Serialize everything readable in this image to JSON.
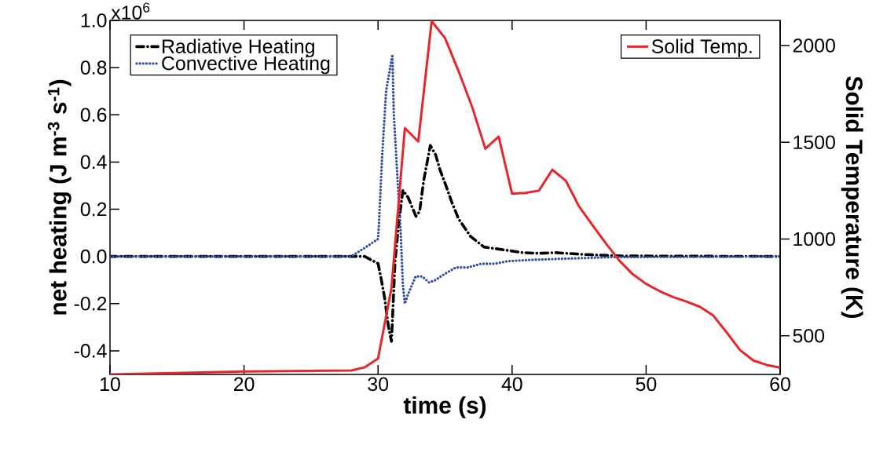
{
  "chart_data": {
    "type": "line",
    "xlabel": "time (s)",
    "ylabel": "net heating (J m$^{-3}$ s$^{-1}$)",
    "y2label": "Solid Temperature (K)",
    "xlim": [
      10,
      60
    ],
    "xticks": [
      10,
      20,
      30,
      40,
      50,
      60
    ],
    "ylim": [
      -0.5,
      1.0
    ],
    "yticks": [
      -0.4,
      -0.2,
      {
        "value": 0,
        "label": "0.0"
      },
      0.2,
      0.4,
      0.6,
      0.8,
      {
        "value": 1.0,
        "label": "1.0"
      }
    ],
    "annotations": [
      "x10$^{6}$"
    ],
    "y2lim": [
      300,
      2130
    ],
    "y2ticks": [
      500,
      1000,
      1500,
      2000
    ],
    "legend": "top left",
    "grid": false,
    "series": [
      {
        "name": "Radiative Heating",
        "color": "#000000",
        "line_style": "dashdot",
        "x": [
          10,
          28,
          29,
          30,
          30.25,
          30.5,
          30.78,
          31,
          31.27,
          31.56,
          31.85,
          32.24,
          32.83,
          33.1,
          33.4,
          33.9,
          34.3,
          34.6,
          35,
          35.5,
          36,
          36.9,
          37.9,
          39.5,
          40.8,
          42,
          43.2,
          45.5,
          48.1,
          60
        ],
        "values": [
          0,
          0,
          0,
          -0.03,
          -0.1,
          -0.18,
          -0.3,
          -0.36,
          -0.02,
          0.15,
          0.28,
          0.25,
          0.17,
          0.19,
          0.32,
          0.47,
          0.43,
          0.37,
          0.31,
          0.23,
          0.16,
          0.085,
          0.04,
          0.027,
          0.016,
          0.013,
          0.016,
          0.008,
          0.002,
          0
        ]
      },
      {
        "name": "Convective Heating",
        "color": "#2e4fa3",
        "line_style": "dotted",
        "x": [
          10,
          28,
          29,
          30,
          30.06,
          30.3,
          30.6,
          31.07,
          31.17,
          31.47,
          31.7,
          31.85,
          32,
          32.24,
          32.8,
          33.3,
          33.8,
          34.3,
          34.8,
          35.8,
          36.7,
          37.7,
          38.7,
          39.7,
          41.6,
          47.5,
          60
        ],
        "values": [
          0,
          0,
          0.036,
          0.074,
          0.13,
          0.42,
          0.7,
          0.855,
          0.61,
          0.31,
          0.09,
          -0.12,
          -0.2,
          -0.16,
          -0.085,
          -0.085,
          -0.11,
          -0.1,
          -0.08,
          -0.047,
          -0.047,
          -0.031,
          -0.031,
          -0.02,
          -0.014,
          -0.003,
          0
        ]
      },
      {
        "name": "Solid Temp.",
        "color": "#e8262a",
        "line_style": "solid",
        "axis": "y2",
        "x": [
          10,
          20,
          28,
          29,
          30,
          31,
          32,
          33,
          34,
          35,
          36,
          37,
          38,
          39,
          40,
          41,
          42,
          43,
          44,
          45,
          46,
          47,
          48,
          49,
          50,
          51,
          52,
          53,
          54,
          55,
          56,
          57,
          58,
          59,
          60
        ],
        "values": [
          300,
          315,
          320,
          337,
          382,
          746,
          1573,
          1504,
          2126,
          2038,
          1869,
          1687,
          1467,
          1529,
          1234,
          1238,
          1250,
          1358,
          1302,
          1168,
          1071,
          977,
          889,
          818,
          768,
          731,
          700,
          677,
          650,
          605,
          518,
          426,
          372,
          349,
          335
        ]
      }
    ]
  }
}
